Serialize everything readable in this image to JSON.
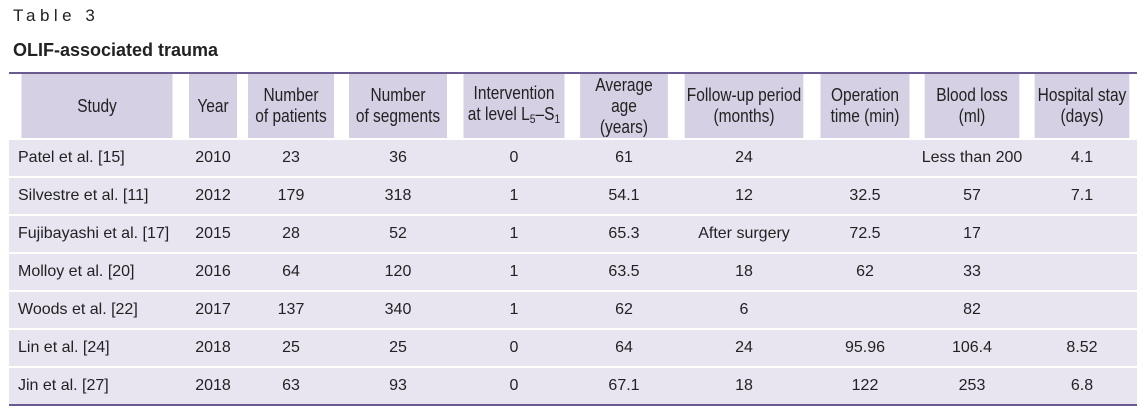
{
  "table_label": "Table 3",
  "table_title": "OLIF-associated trauma",
  "colors": {
    "header_bg": "#d5d0e3",
    "row_bg": "#e8e5f1",
    "rule": "#6a5a92"
  },
  "headers": {
    "study": "Study",
    "year": "Year",
    "patients": [
      "Number",
      "of patients"
    ],
    "segments": [
      "Number",
      "of segments"
    ],
    "intervention": {
      "line1": "Intervention",
      "prefix": "at level L",
      "sub1": "5",
      "dash": "–S",
      "sub2": "1"
    },
    "age": [
      "Average age",
      "(years)"
    ],
    "followup": [
      "Follow-up period",
      "(months)"
    ],
    "operation": [
      "Operation",
      "time (min)"
    ],
    "blood": [
      "Blood loss",
      "(ml)"
    ],
    "stay": [
      "Hospital stay",
      "(days)"
    ]
  },
  "rows": [
    [
      "Patel et al. [15]",
      "2010",
      "23",
      "36",
      "0",
      "61",
      "24",
      "",
      "Less than 200",
      "4.1"
    ],
    [
      "Silvestre et al. [11]",
      "2012",
      "179",
      "318",
      "1",
      "54.1",
      "12",
      "32.5",
      "57",
      "7.1"
    ],
    [
      "Fujibayashi et al. [17]",
      "2015",
      "28",
      "52",
      "1",
      "65.3",
      "After surgery",
      "72.5",
      "17",
      ""
    ],
    [
      "Molloy et al. [20]",
      "2016",
      "64",
      "120",
      "1",
      "63.5",
      "18",
      "62",
      "33",
      ""
    ],
    [
      "Woods et al. [22]",
      "2017",
      "137",
      "340",
      "1",
      "62",
      "6",
      "",
      "82",
      ""
    ],
    [
      "Lin et al. [24]",
      "2018",
      "25",
      "25",
      "0",
      "64",
      "24",
      "95.96",
      "106.4",
      "8.52"
    ],
    [
      "Jin et al. [27]",
      "2018",
      "63",
      "93",
      "0",
      "67.1",
      "18",
      "122",
      "253",
      "6.8"
    ]
  ]
}
